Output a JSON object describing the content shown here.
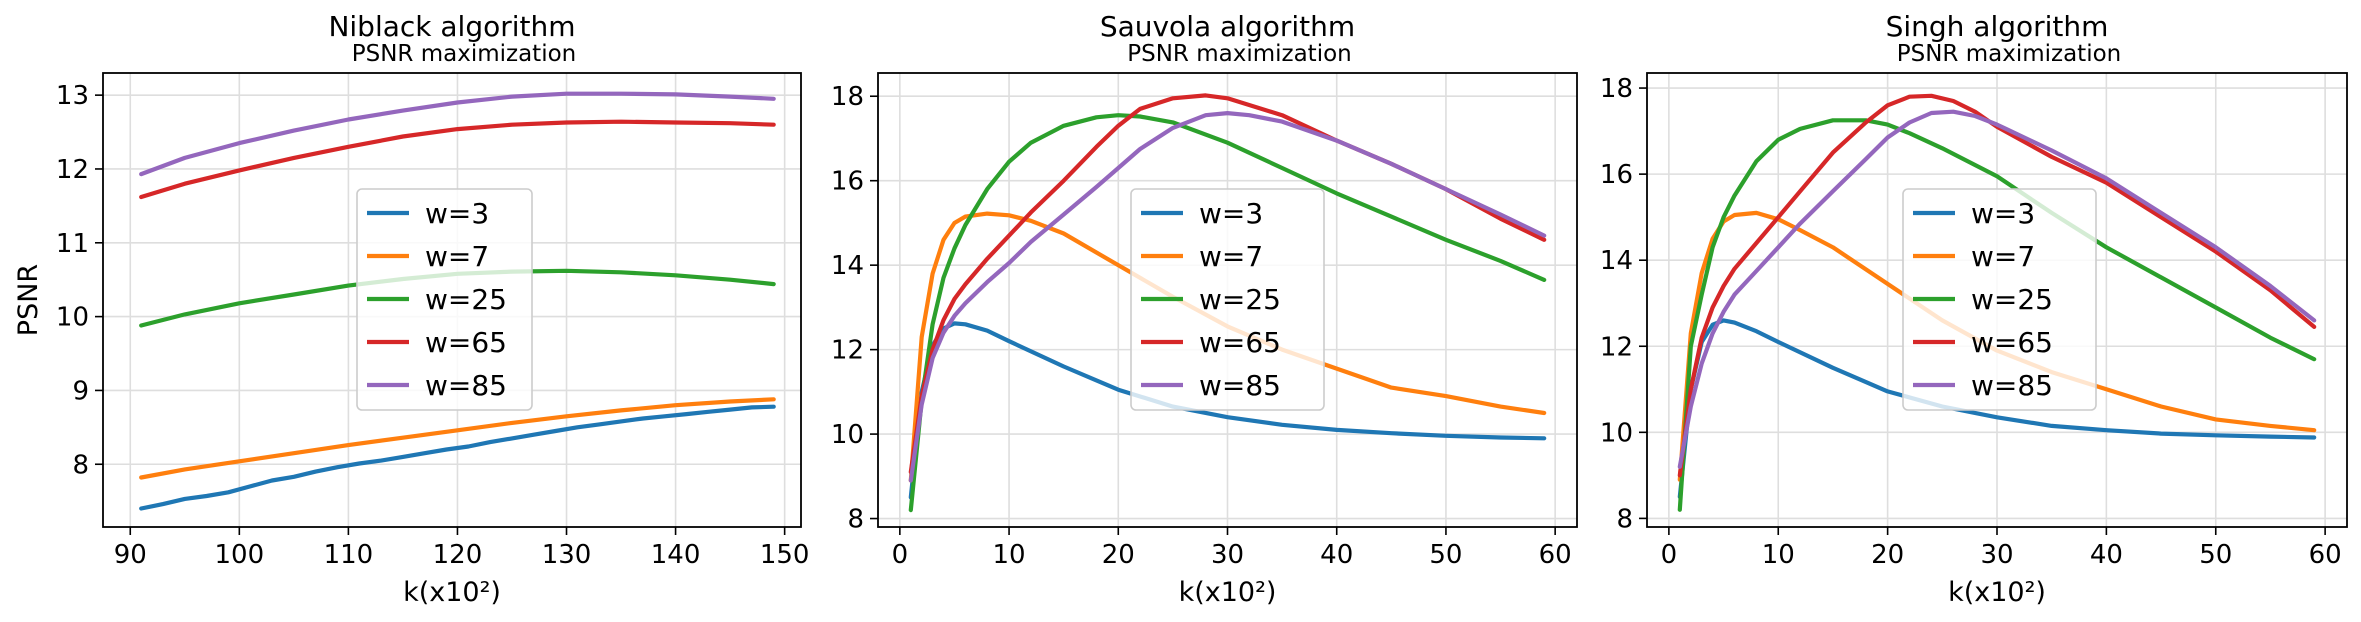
{
  "chart_data": [
    {
      "type": "line",
      "title": "Niblack algorithm",
      "subtitle": "PSNR maximization",
      "xlabel": "k(x10²)",
      "ylabel": "PSNR",
      "xlim": [
        87.5,
        151.5
      ],
      "ylim": [
        7.15,
        13.3
      ],
      "xticks": [
        90,
        100,
        110,
        120,
        130,
        140,
        150
      ],
      "yticks": [
        8,
        9,
        10,
        11,
        12,
        13
      ],
      "grid": true,
      "legend": "center",
      "series": [
        {
          "name": "w=3",
          "color": "#1f77b4",
          "x": [
            91,
            93,
            95,
            97,
            99,
            101,
            103,
            105,
            107,
            109,
            111,
            113,
            115,
            117,
            119,
            121,
            123,
            125,
            127,
            129,
            131,
            133,
            135,
            137,
            139,
            141,
            143,
            145,
            147,
            149
          ],
          "y": [
            7.4,
            7.46,
            7.53,
            7.57,
            7.62,
            7.7,
            7.78,
            7.83,
            7.9,
            7.96,
            8.01,
            8.05,
            8.1,
            8.15,
            8.2,
            8.24,
            8.3,
            8.35,
            8.4,
            8.45,
            8.5,
            8.54,
            8.58,
            8.62,
            8.65,
            8.68,
            8.71,
            8.74,
            8.77,
            8.78
          ]
        },
        {
          "name": "w=7",
          "color": "#ff7f0e",
          "x": [
            91,
            95,
            100,
            105,
            110,
            115,
            120,
            125,
            130,
            135,
            140,
            145,
            149
          ],
          "y": [
            7.82,
            7.93,
            8.04,
            8.15,
            8.26,
            8.36,
            8.46,
            8.56,
            8.65,
            8.73,
            8.8,
            8.85,
            8.88
          ]
        },
        {
          "name": "w=25",
          "color": "#2ca02c",
          "x": [
            91,
            95,
            100,
            105,
            110,
            115,
            120,
            125,
            130,
            135,
            140,
            145,
            149
          ],
          "y": [
            9.88,
            10.03,
            10.18,
            10.3,
            10.42,
            10.51,
            10.58,
            10.61,
            10.62,
            10.6,
            10.56,
            10.5,
            10.44
          ]
        },
        {
          "name": "w=65",
          "color": "#d62728",
          "x": [
            91,
            95,
            100,
            105,
            110,
            115,
            120,
            125,
            130,
            135,
            140,
            145,
            149
          ],
          "y": [
            11.62,
            11.8,
            11.98,
            12.15,
            12.3,
            12.44,
            12.54,
            12.6,
            12.63,
            12.64,
            12.63,
            12.62,
            12.6
          ]
        },
        {
          "name": "w=85",
          "color": "#9467bd",
          "x": [
            91,
            95,
            100,
            105,
            110,
            115,
            120,
            125,
            130,
            135,
            140,
            145,
            149
          ],
          "y": [
            11.93,
            12.15,
            12.35,
            12.52,
            12.67,
            12.79,
            12.9,
            12.98,
            13.02,
            13.02,
            13.01,
            12.98,
            12.95
          ]
        }
      ]
    },
    {
      "type": "line",
      "title": "Sauvola algorithm",
      "subtitle": "PSNR maximization",
      "xlabel": "k(x10²)",
      "ylabel": "",
      "xlim": [
        -2,
        62
      ],
      "ylim": [
        7.8,
        18.55
      ],
      "xticks": [
        0,
        10,
        20,
        30,
        40,
        50,
        60
      ],
      "yticks": [
        8,
        10,
        12,
        14,
        16,
        18
      ],
      "grid": true,
      "legend": "center",
      "series": [
        {
          "name": "w=3",
          "color": "#1f77b4",
          "x": [
            1,
            2,
            3,
            4,
            5,
            6,
            8,
            10,
            15,
            20,
            25,
            30,
            35,
            40,
            45,
            50,
            55,
            59
          ],
          "y": [
            8.5,
            11.0,
            12.1,
            12.5,
            12.62,
            12.6,
            12.45,
            12.2,
            11.6,
            11.05,
            10.65,
            10.4,
            10.22,
            10.1,
            10.02,
            9.96,
            9.92,
            9.9
          ]
        },
        {
          "name": "w=7",
          "color": "#ff7f0e",
          "x": [
            1,
            2,
            3,
            4,
            5,
            6,
            8,
            10,
            12,
            15,
            20,
            25,
            30,
            35,
            40,
            45,
            50,
            55,
            59
          ],
          "y": [
            8.9,
            12.3,
            13.8,
            14.6,
            15.0,
            15.15,
            15.22,
            15.18,
            15.05,
            14.75,
            14.0,
            13.25,
            12.55,
            12.0,
            11.55,
            11.1,
            10.9,
            10.65,
            10.5
          ]
        },
        {
          "name": "w=25",
          "color": "#2ca02c",
          "x": [
            1,
            2,
            3,
            4,
            5,
            6,
            8,
            10,
            12,
            15,
            18,
            20,
            22,
            25,
            30,
            35,
            40,
            45,
            50,
            55,
            59
          ],
          "y": [
            8.2,
            10.8,
            12.6,
            13.7,
            14.4,
            14.95,
            15.8,
            16.45,
            16.9,
            17.3,
            17.5,
            17.55,
            17.52,
            17.38,
            16.9,
            16.3,
            15.7,
            15.15,
            14.6,
            14.1,
            13.65
          ]
        },
        {
          "name": "w=65",
          "color": "#d62728",
          "x": [
            1,
            2,
            3,
            4,
            5,
            6,
            8,
            10,
            12,
            15,
            18,
            20,
            22,
            25,
            28,
            30,
            35,
            40,
            45,
            50,
            55,
            59
          ],
          "y": [
            9.1,
            10.9,
            12.0,
            12.7,
            13.2,
            13.55,
            14.15,
            14.7,
            15.25,
            16.0,
            16.8,
            17.3,
            17.7,
            17.95,
            18.02,
            17.95,
            17.55,
            16.95,
            16.4,
            15.8,
            15.1,
            14.6
          ]
        },
        {
          "name": "w=85",
          "color": "#9467bd",
          "x": [
            1,
            2,
            3,
            4,
            5,
            6,
            8,
            10,
            12,
            15,
            18,
            20,
            22,
            25,
            28,
            30,
            32,
            35,
            40,
            45,
            50,
            55,
            59
          ],
          "y": [
            8.9,
            10.7,
            11.8,
            12.4,
            12.8,
            13.1,
            13.6,
            14.05,
            14.55,
            15.2,
            15.85,
            16.3,
            16.75,
            17.25,
            17.55,
            17.6,
            17.55,
            17.4,
            16.95,
            16.4,
            15.8,
            15.2,
            14.7
          ]
        }
      ]
    },
    {
      "type": "line",
      "title": "Singh algorithm",
      "subtitle": "PSNR maximization",
      "xlabel": "k(x10²)",
      "ylabel": "",
      "xlim": [
        -2,
        62
      ],
      "ylim": [
        7.8,
        18.35
      ],
      "xticks": [
        0,
        10,
        20,
        30,
        40,
        50,
        60
      ],
      "yticks": [
        8,
        10,
        12,
        14,
        16,
        18
      ],
      "grid": true,
      "legend": "center",
      "series": [
        {
          "name": "w=3",
          "color": "#1f77b4",
          "x": [
            1,
            2,
            3,
            4,
            5,
            6,
            8,
            10,
            15,
            20,
            25,
            30,
            35,
            40,
            45,
            50,
            55,
            59
          ],
          "y": [
            8.5,
            11.0,
            12.1,
            12.5,
            12.6,
            12.55,
            12.35,
            12.1,
            11.5,
            10.95,
            10.6,
            10.35,
            10.15,
            10.05,
            9.97,
            9.93,
            9.9,
            9.88
          ]
        },
        {
          "name": "w=7",
          "color": "#ff7f0e",
          "x": [
            1,
            2,
            3,
            4,
            5,
            6,
            8,
            10,
            12,
            15,
            20,
            25,
            30,
            35,
            40,
            45,
            50,
            55,
            59
          ],
          "y": [
            8.9,
            12.3,
            13.7,
            14.5,
            14.9,
            15.05,
            15.1,
            14.95,
            14.7,
            14.3,
            13.45,
            12.6,
            11.9,
            11.4,
            11.0,
            10.6,
            10.3,
            10.15,
            10.05
          ]
        },
        {
          "name": "w=25",
          "color": "#2ca02c",
          "x": [
            1,
            2,
            3,
            4,
            5,
            6,
            8,
            10,
            12,
            15,
            18,
            20,
            22,
            25,
            30,
            35,
            40,
            45,
            50,
            55,
            59
          ],
          "y": [
            8.2,
            12.0,
            13.2,
            14.3,
            15.0,
            15.5,
            16.3,
            16.8,
            17.05,
            17.25,
            17.25,
            17.15,
            16.95,
            16.6,
            15.95,
            15.1,
            14.3,
            13.6,
            12.9,
            12.2,
            11.7
          ]
        },
        {
          "name": "w=65",
          "color": "#d62728",
          "x": [
            1,
            2,
            3,
            4,
            5,
            6,
            8,
            10,
            12,
            15,
            18,
            20,
            22,
            24,
            26,
            28,
            30,
            35,
            40,
            45,
            50,
            55,
            59
          ],
          "y": [
            9.0,
            11.0,
            12.2,
            12.9,
            13.4,
            13.8,
            14.4,
            15.0,
            15.6,
            16.5,
            17.2,
            17.6,
            17.8,
            17.82,
            17.7,
            17.45,
            17.1,
            16.4,
            15.8,
            15.0,
            14.2,
            13.3,
            12.45
          ]
        },
        {
          "name": "w=85",
          "color": "#9467bd",
          "x": [
            1,
            2,
            3,
            4,
            5,
            6,
            8,
            10,
            12,
            15,
            18,
            20,
            22,
            24,
            26,
            28,
            30,
            35,
            40,
            45,
            50,
            55,
            59
          ],
          "y": [
            9.2,
            10.6,
            11.6,
            12.3,
            12.8,
            13.2,
            13.75,
            14.3,
            14.85,
            15.6,
            16.35,
            16.85,
            17.2,
            17.42,
            17.45,
            17.35,
            17.15,
            16.55,
            15.9,
            15.1,
            14.3,
            13.4,
            12.6
          ]
        }
      ]
    }
  ]
}
